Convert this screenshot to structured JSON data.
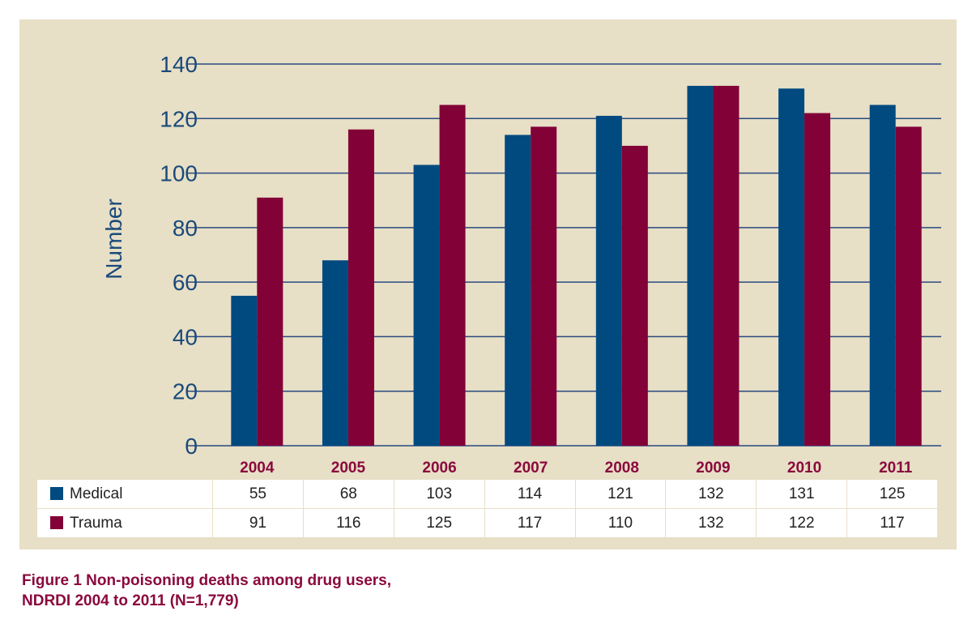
{
  "chart_data": {
    "type": "bar",
    "categories": [
      "2004",
      "2005",
      "2006",
      "2007",
      "2008",
      "2009",
      "2010",
      "2011"
    ],
    "series": [
      {
        "name": "Medical",
        "values": [
          55,
          68,
          103,
          114,
          121,
          132,
          131,
          125
        ],
        "color": "#004a80"
      },
      {
        "name": "Trauma",
        "values": [
          91,
          116,
          125,
          117,
          110,
          132,
          122,
          117
        ],
        "color": "#820137"
      }
    ],
    "ylabel": "Number",
    "ylim": [
      0,
      140
    ],
    "yticks": [
      0,
      20,
      40,
      60,
      80,
      100,
      120,
      140
    ],
    "grid": true,
    "legend": "table-below"
  },
  "colors": {
    "panel_background": "#e7dfc6",
    "axis_text": "#1a4a7a",
    "category_text": "#8a0a3d",
    "gridline": "#2a4a80"
  },
  "caption": {
    "line1": "Figure 1  Non-poisoning deaths among drug users,",
    "line2": "NDRDI 2004 to 2011 (N=1,779)"
  }
}
